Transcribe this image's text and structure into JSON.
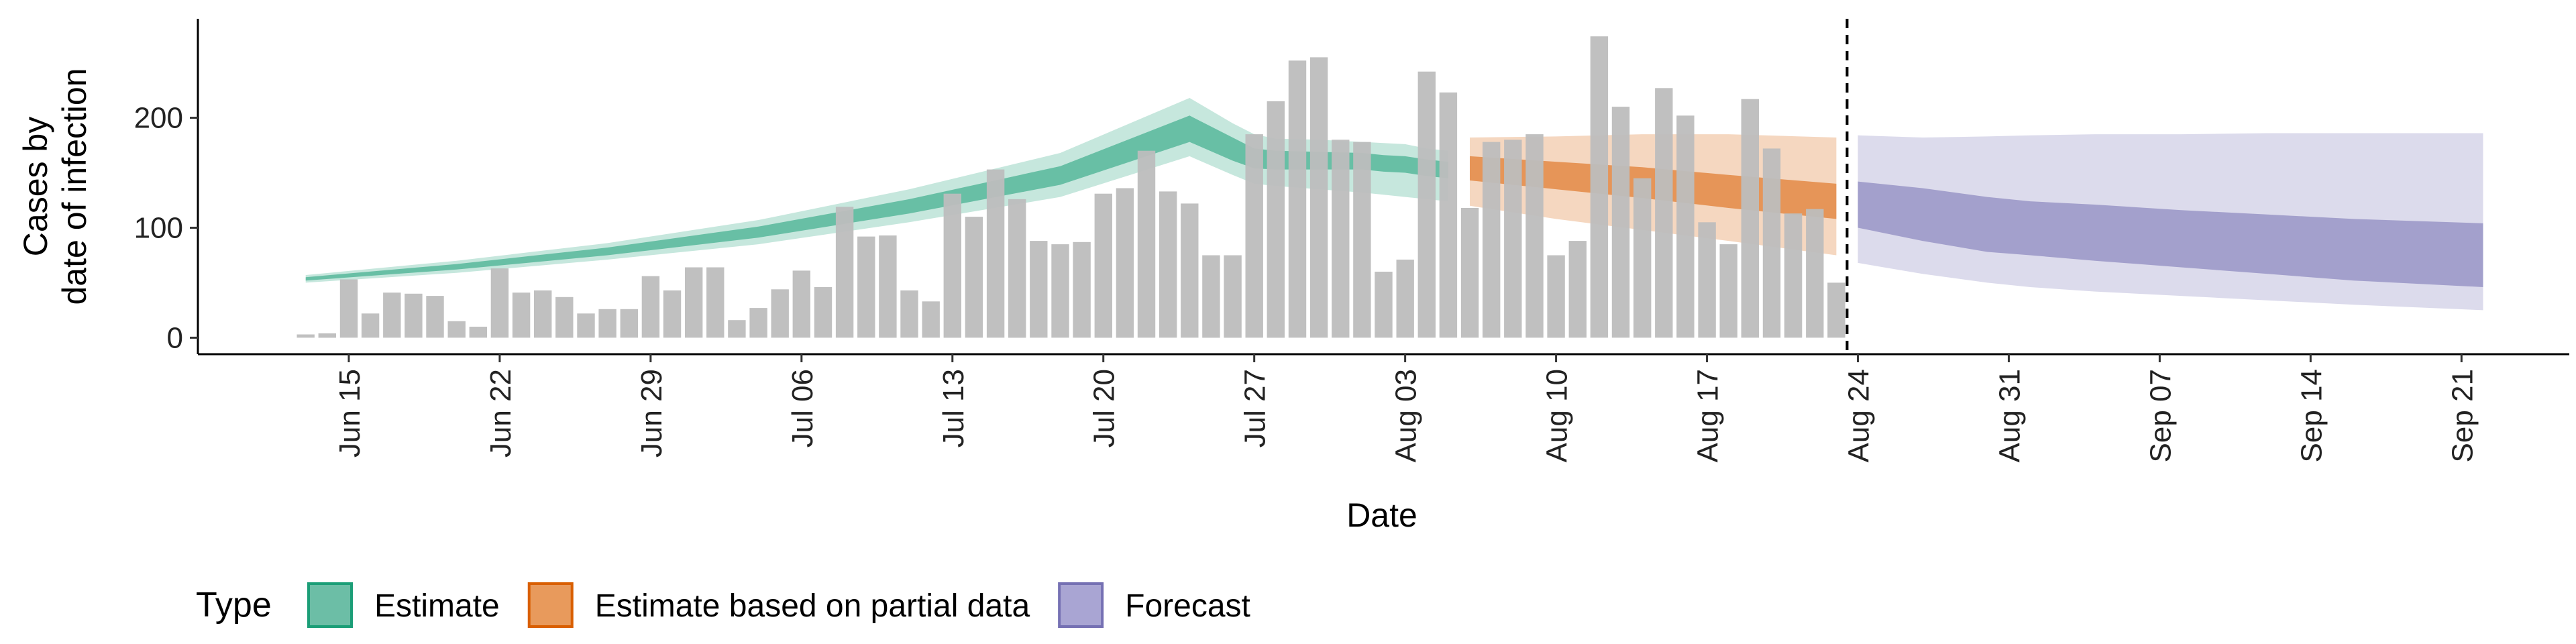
{
  "chart_data": {
    "type": "bar",
    "xlabel": "Date",
    "ylabel_lines": [
      "Cases by",
      "date of infection"
    ],
    "x_tick_labels": [
      "Jun 15",
      "Jun 22",
      "Jun 29",
      "Jul 06",
      "Jul 13",
      "Jul 20",
      "Jul 27",
      "Aug 03",
      "Aug 10",
      "Aug 17",
      "Aug 24",
      "Aug 31",
      "Sep 07",
      "Sep 14",
      "Sep 21"
    ],
    "x_tick_dates": [
      "2020-06-15",
      "2020-06-22",
      "2020-06-29",
      "2020-07-06",
      "2020-07-13",
      "2020-07-20",
      "2020-07-27",
      "2020-08-03",
      "2020-08-10",
      "2020-08-17",
      "2020-08-24",
      "2020-08-31",
      "2020-09-07",
      "2020-09-14",
      "2020-09-21"
    ],
    "x_range": [
      "2020-06-08",
      "2020-09-26"
    ],
    "y_ticks": [
      0,
      100,
      200
    ],
    "ylim": [
      -15,
      290
    ],
    "grid": false,
    "forecast_start_date": "2020-08-23",
    "observed_cases": {
      "dates": [
        "2020-06-13",
        "2020-06-14",
        "2020-06-15",
        "2020-06-16",
        "2020-06-17",
        "2020-06-18",
        "2020-06-19",
        "2020-06-20",
        "2020-06-21",
        "2020-06-22",
        "2020-06-23",
        "2020-06-24",
        "2020-06-25",
        "2020-06-26",
        "2020-06-27",
        "2020-06-28",
        "2020-06-29",
        "2020-06-30",
        "2020-07-01",
        "2020-07-02",
        "2020-07-03",
        "2020-07-04",
        "2020-07-05",
        "2020-07-06",
        "2020-07-07",
        "2020-07-08",
        "2020-07-09",
        "2020-07-10",
        "2020-07-11",
        "2020-07-12",
        "2020-07-13",
        "2020-07-14",
        "2020-07-15",
        "2020-07-16",
        "2020-07-17",
        "2020-07-18",
        "2020-07-19",
        "2020-07-20",
        "2020-07-21",
        "2020-07-22",
        "2020-07-23",
        "2020-07-24",
        "2020-07-25",
        "2020-07-26",
        "2020-07-27",
        "2020-07-28",
        "2020-07-29",
        "2020-07-30",
        "2020-07-31",
        "2020-08-01",
        "2020-08-02",
        "2020-08-03",
        "2020-08-04",
        "2020-08-05",
        "2020-08-06",
        "2020-08-07",
        "2020-08-08",
        "2020-08-09",
        "2020-08-10",
        "2020-08-11",
        "2020-08-12",
        "2020-08-13",
        "2020-08-14",
        "2020-08-15",
        "2020-08-16",
        "2020-08-17",
        "2020-08-18",
        "2020-08-19",
        "2020-08-20",
        "2020-08-21",
        "2020-08-22",
        "2020-08-23"
      ],
      "values": [
        3,
        4,
        53,
        22,
        41,
        40,
        38,
        15,
        10,
        63,
        41,
        43,
        37,
        22,
        26,
        26,
        56,
        43,
        64,
        64,
        16,
        27,
        44,
        61,
        46,
        119,
        92,
        93,
        43,
        33,
        131,
        110,
        153,
        126,
        88,
        85,
        87,
        131,
        136,
        170,
        133,
        122,
        75,
        75,
        185,
        215,
        252,
        255,
        180,
        178,
        60,
        71,
        242,
        223,
        118,
        178,
        180,
        185,
        75,
        88,
        274,
        210,
        145,
        227,
        202,
        105,
        85,
        217,
        172,
        113,
        117,
        50
      ]
    },
    "series": [
      {
        "name": "Estimate",
        "color": "#1b9e77",
        "dates": [
          "2020-06-13",
          "2020-06-20",
          "2020-06-27",
          "2020-07-04",
          "2020-07-11",
          "2020-07-18",
          "2020-07-24",
          "2020-07-26",
          "2020-07-27",
          "2020-07-28",
          "2020-07-30",
          "2020-08-01",
          "2020-08-02",
          "2020-08-03",
          "2020-08-04",
          "2020-08-05"
        ],
        "outer_upper": [
          57,
          70,
          86,
          107,
          135,
          168,
          218,
          195,
          185,
          181,
          180,
          178,
          177,
          176,
          172,
          170
        ],
        "inner_upper": [
          55,
          67,
          82,
          101,
          126,
          156,
          202,
          182,
          172,
          170,
          169,
          168,
          166,
          165,
          162,
          160
        ],
        "inner_lower": [
          52,
          62,
          75,
          91,
          113,
          139,
          178,
          161,
          154,
          153,
          153,
          153,
          151,
          150,
          147,
          145
        ],
        "outer_lower": [
          50,
          59,
          71,
          85,
          105,
          128,
          165,
          148,
          140,
          138,
          135,
          132,
          130,
          128,
          126,
          124
        ]
      },
      {
        "name": "Estimate based on partial data",
        "color": "#d95f02",
        "dates": [
          "2020-08-06",
          "2020-08-10",
          "2020-08-14",
          "2020-08-18",
          "2020-08-23"
        ],
        "outer_upper": [
          182,
          183,
          185,
          185,
          182
        ],
        "inner_upper": [
          165,
          160,
          155,
          148,
          140
        ],
        "inner_lower": [
          143,
          135,
          127,
          118,
          108
        ],
        "outer_lower": [
          120,
          108,
          98,
          88,
          75
        ]
      },
      {
        "name": "Forecast",
        "color": "#7570b3",
        "dates": [
          "2020-08-24",
          "2020-08-27",
          "2020-08-30",
          "2020-09-01",
          "2020-09-04",
          "2020-09-08",
          "2020-09-12",
          "2020-09-16",
          "2020-09-22"
        ],
        "outer_upper": [
          184,
          182,
          183,
          184,
          185,
          185,
          186,
          186,
          186
        ],
        "inner_upper": [
          142,
          136,
          128,
          124,
          121,
          116,
          112,
          108,
          104
        ],
        "inner_lower": [
          100,
          88,
          78,
          75,
          70,
          64,
          58,
          52,
          46
        ],
        "outer_lower": [
          68,
          58,
          50,
          46,
          42,
          38,
          34,
          30,
          25
        ]
      }
    ],
    "legend": {
      "title": "Type",
      "position": "bottom-left",
      "items": [
        {
          "label": "Estimate",
          "fill": "#6cbea6",
          "stroke": "#1b9e77"
        },
        {
          "label": "Estimate based on partial data",
          "fill": "#e89a5c",
          "stroke": "#d95f02"
        },
        {
          "label": "Forecast",
          "fill": "#a9a5d3",
          "stroke": "#7570b3"
        }
      ]
    },
    "bar_color": "#bdbdbd"
  }
}
